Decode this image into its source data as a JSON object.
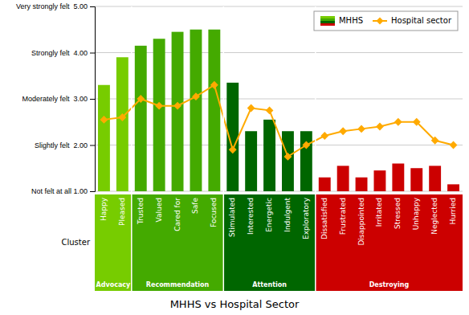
{
  "chart_data": {
    "type": "bar",
    "title": "MHHS vs Hospital Sector",
    "categories": [
      "Happy",
      "Pleased",
      "Trusted",
      "Valued",
      "Cared for",
      "Safe",
      "Focused",
      "Stimulated",
      "Interested",
      "Energetic",
      "Indulgent",
      "Exploratory",
      "Dissatisfied",
      "Frustrated",
      "Disappointed",
      "Irritated",
      "Stressed",
      "Unhappy",
      "Neglected",
      "Hurried"
    ],
    "series": [
      {
        "name": "MHHS",
        "type": "bar",
        "colors": [
          "#77cc00",
          "#77cc00",
          "#44aa00",
          "#44aa00",
          "#44aa00",
          "#44aa00",
          "#44aa00",
          "#006600",
          "#006600",
          "#006600",
          "#006600",
          "#006600",
          "#cc0000",
          "#cc0000",
          "#cc0000",
          "#cc0000",
          "#cc0000",
          "#cc0000",
          "#cc0000",
          "#cc0000"
        ],
        "values": [
          3.3,
          3.9,
          4.15,
          4.3,
          4.45,
          4.5,
          4.5,
          3.35,
          2.3,
          2.55,
          2.3,
          2.3,
          1.3,
          1.55,
          1.3,
          1.45,
          1.6,
          1.5,
          1.55,
          1.15
        ]
      },
      {
        "name": "Hospital sector",
        "type": "line",
        "color": "#ffaa00",
        "marker": "diamond",
        "values": [
          2.55,
          2.6,
          3.0,
          2.85,
          2.85,
          3.05,
          3.3,
          1.9,
          2.8,
          2.75,
          1.75,
          2.0,
          2.2,
          2.3,
          2.35,
          2.4,
          2.5,
          2.5,
          2.1,
          2.0
        ]
      }
    ],
    "groups": [
      {
        "name": "Advocacy",
        "color": "#77cc00",
        "categories": [
          "Happy",
          "Pleased"
        ]
      },
      {
        "name": "Recommendation",
        "color": "#44aa00",
        "categories": [
          "Trusted",
          "Valued",
          "Cared for",
          "Safe",
          "Focused"
        ]
      },
      {
        "name": "Attention",
        "color": "#006600",
        "categories": [
          "Stimulated",
          "Interested",
          "Energetic",
          "Indulgent",
          "Exploratory"
        ]
      },
      {
        "name": "Destroying",
        "color": "#cc0000",
        "categories": [
          "Dissatisfied",
          "Frustrated",
          "Disappointed",
          "Irritated",
          "Stressed",
          "Unhappy",
          "Neglected",
          "Hurried"
        ]
      }
    ],
    "group_label": "Cluster",
    "ylim": [
      1.0,
      5.0
    ],
    "yticks": [
      {
        "value": 1.0,
        "label": "Not felt at all 1.00"
      },
      {
        "value": 2.0,
        "label": "Slightly felt  2.00"
      },
      {
        "value": 3.0,
        "label": "Moderately felt  3.00"
      },
      {
        "value": 4.0,
        "label": "Strongly felt  4.00"
      },
      {
        "value": 5.0,
        "label": "Very strongly felt  5.00"
      }
    ],
    "grid": true,
    "legend": "upper right"
  }
}
